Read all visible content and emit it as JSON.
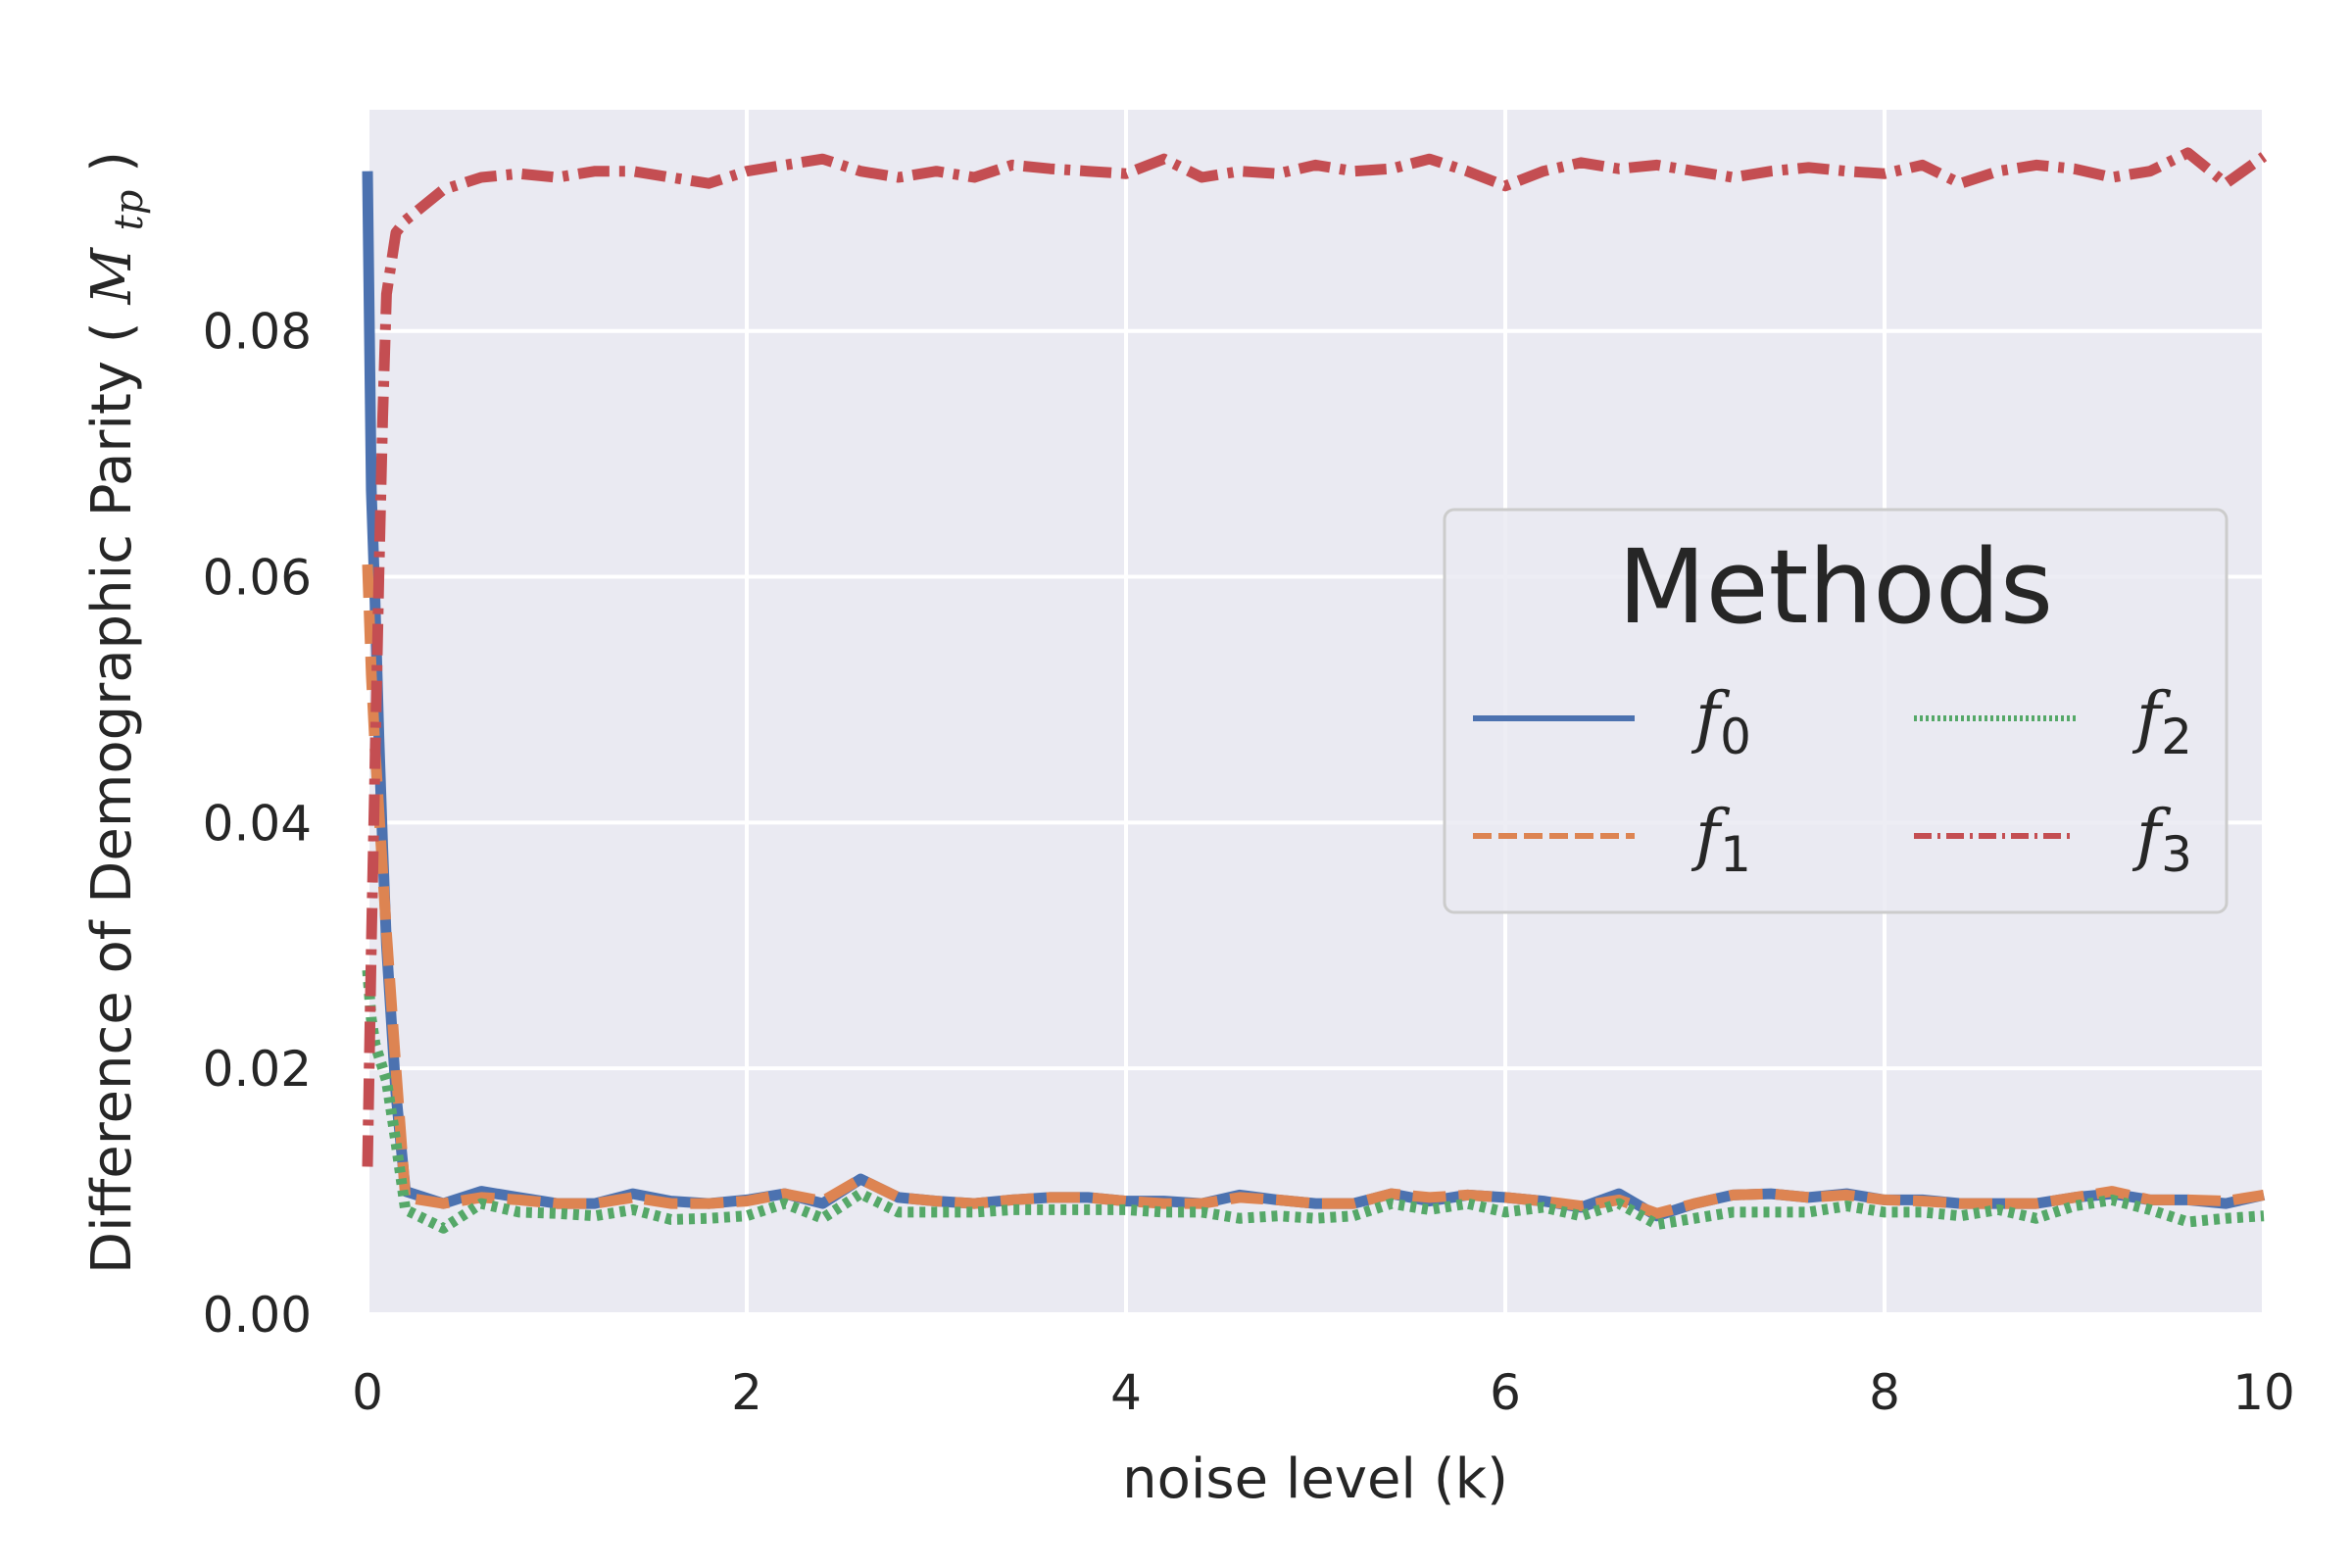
{
  "chart_data": {
    "type": "line",
    "title": "",
    "xlabel": "noise level (k)",
    "ylabel": "Difference of Demographic Parity",
    "ylabel_symbol": "M",
    "ylabel_subscript": "tp",
    "xlim": [
      0,
      10
    ],
    "ylim": [
      0,
      0.098
    ],
    "xticks": [
      0,
      2,
      4,
      6,
      8,
      10
    ],
    "xtick_labels": [
      "0",
      "2",
      "4",
      "6",
      "8",
      "10"
    ],
    "yticks": [
      0,
      0.02,
      0.04,
      0.06,
      0.08
    ],
    "ytick_labels": [
      "0.00",
      "0.02",
      "0.04",
      "0.06",
      "0.08"
    ],
    "grid": true,
    "legend": {
      "title": "Methods",
      "position": "center-right",
      "columns": 2
    },
    "x": [
      0.0,
      0.02,
      0.04,
      0.06,
      0.08,
      0.1,
      0.15,
      0.2,
      0.4,
      0.6,
      0.8,
      1.0,
      1.2,
      1.4,
      1.6,
      1.8,
      2.0,
      2.2,
      2.4,
      2.6,
      2.8,
      3.0,
      3.2,
      3.4,
      3.6,
      3.8,
      4.0,
      4.2,
      4.4,
      4.6,
      4.8,
      5.0,
      5.2,
      5.4,
      5.6,
      5.8,
      6.0,
      6.2,
      6.4,
      6.6,
      6.8,
      7.0,
      7.2,
      7.4,
      7.6,
      7.8,
      8.0,
      8.2,
      8.4,
      8.6,
      8.8,
      9.0,
      9.2,
      9.4,
      9.6,
      9.8,
      10.0
    ],
    "series": [
      {
        "name": "f",
        "sub": "0",
        "color": "#4c72b0",
        "dash": "",
        "values": [
          0.093,
          0.067,
          0.058,
          0.047,
          0.038,
          0.03,
          0.018,
          0.01,
          0.009,
          0.01,
          0.0095,
          0.009,
          0.009,
          0.0098,
          0.0092,
          0.009,
          0.0093,
          0.0098,
          0.009,
          0.011,
          0.0095,
          0.0092,
          0.009,
          0.0093,
          0.0095,
          0.0095,
          0.0092,
          0.0092,
          0.009,
          0.0097,
          0.0093,
          0.009,
          0.009,
          0.0098,
          0.0092,
          0.0097,
          0.0095,
          0.0092,
          0.0087,
          0.0098,
          0.008,
          0.009,
          0.0097,
          0.0098,
          0.0095,
          0.0098,
          0.0093,
          0.0093,
          0.009,
          0.009,
          0.009,
          0.0095,
          0.0098,
          0.0093,
          0.0093,
          0.009,
          0.0097
        ]
      },
      {
        "name": "f",
        "sub": "1",
        "color": "#dd8452",
        "dash": "34 13",
        "values": [
          0.061,
          0.052,
          0.046,
          0.041,
          0.036,
          0.031,
          0.02,
          0.0095,
          0.009,
          0.0095,
          0.0093,
          0.009,
          0.009,
          0.0095,
          0.009,
          0.009,
          0.0092,
          0.0098,
          0.0092,
          0.011,
          0.0095,
          0.0092,
          0.009,
          0.0093,
          0.0095,
          0.0095,
          0.0092,
          0.009,
          0.009,
          0.0095,
          0.0093,
          0.009,
          0.009,
          0.0098,
          0.0095,
          0.0097,
          0.0095,
          0.0092,
          0.0088,
          0.0093,
          0.0082,
          0.009,
          0.0097,
          0.0098,
          0.0095,
          0.0097,
          0.0093,
          0.0092,
          0.009,
          0.009,
          0.009,
          0.0095,
          0.01,
          0.0093,
          0.0093,
          0.0092,
          0.0097
        ]
      },
      {
        "name": "f",
        "sub": "2",
        "color": "#55a868",
        "dash": "6 6",
        "values": [
          0.028,
          0.024,
          0.022,
          0.021,
          0.02,
          0.019,
          0.014,
          0.0085,
          0.007,
          0.009,
          0.0083,
          0.0082,
          0.008,
          0.0085,
          0.0077,
          0.0078,
          0.008,
          0.009,
          0.0078,
          0.0098,
          0.0083,
          0.0083,
          0.0083,
          0.0085,
          0.0085,
          0.0085,
          0.0085,
          0.0083,
          0.0083,
          0.0078,
          0.008,
          0.0078,
          0.008,
          0.009,
          0.0085,
          0.009,
          0.0083,
          0.0087,
          0.008,
          0.009,
          0.0073,
          0.0078,
          0.0083,
          0.0083,
          0.0083,
          0.0088,
          0.0083,
          0.0083,
          0.008,
          0.0085,
          0.0078,
          0.0088,
          0.0093,
          0.0085,
          0.0075,
          0.0078,
          0.008
        ]
      },
      {
        "name": "f",
        "sub": "3",
        "color": "#c44e52",
        "dash": "32 10 6 10",
        "values": [
          0.012,
          0.03,
          0.045,
          0.06,
          0.073,
          0.083,
          0.088,
          0.089,
          0.0915,
          0.0925,
          0.0928,
          0.0925,
          0.093,
          0.093,
          0.0925,
          0.092,
          0.093,
          0.0935,
          0.094,
          0.093,
          0.0925,
          0.093,
          0.0925,
          0.0935,
          0.0932,
          0.093,
          0.0928,
          0.094,
          0.0925,
          0.093,
          0.0928,
          0.0935,
          0.093,
          0.0932,
          0.094,
          0.093,
          0.0918,
          0.093,
          0.0937,
          0.0932,
          0.0935,
          0.093,
          0.0925,
          0.093,
          0.0933,
          0.093,
          0.0928,
          0.0935,
          0.092,
          0.093,
          0.0935,
          0.0932,
          0.0925,
          0.093,
          0.0945,
          0.092,
          0.0942
        ]
      }
    ]
  }
}
